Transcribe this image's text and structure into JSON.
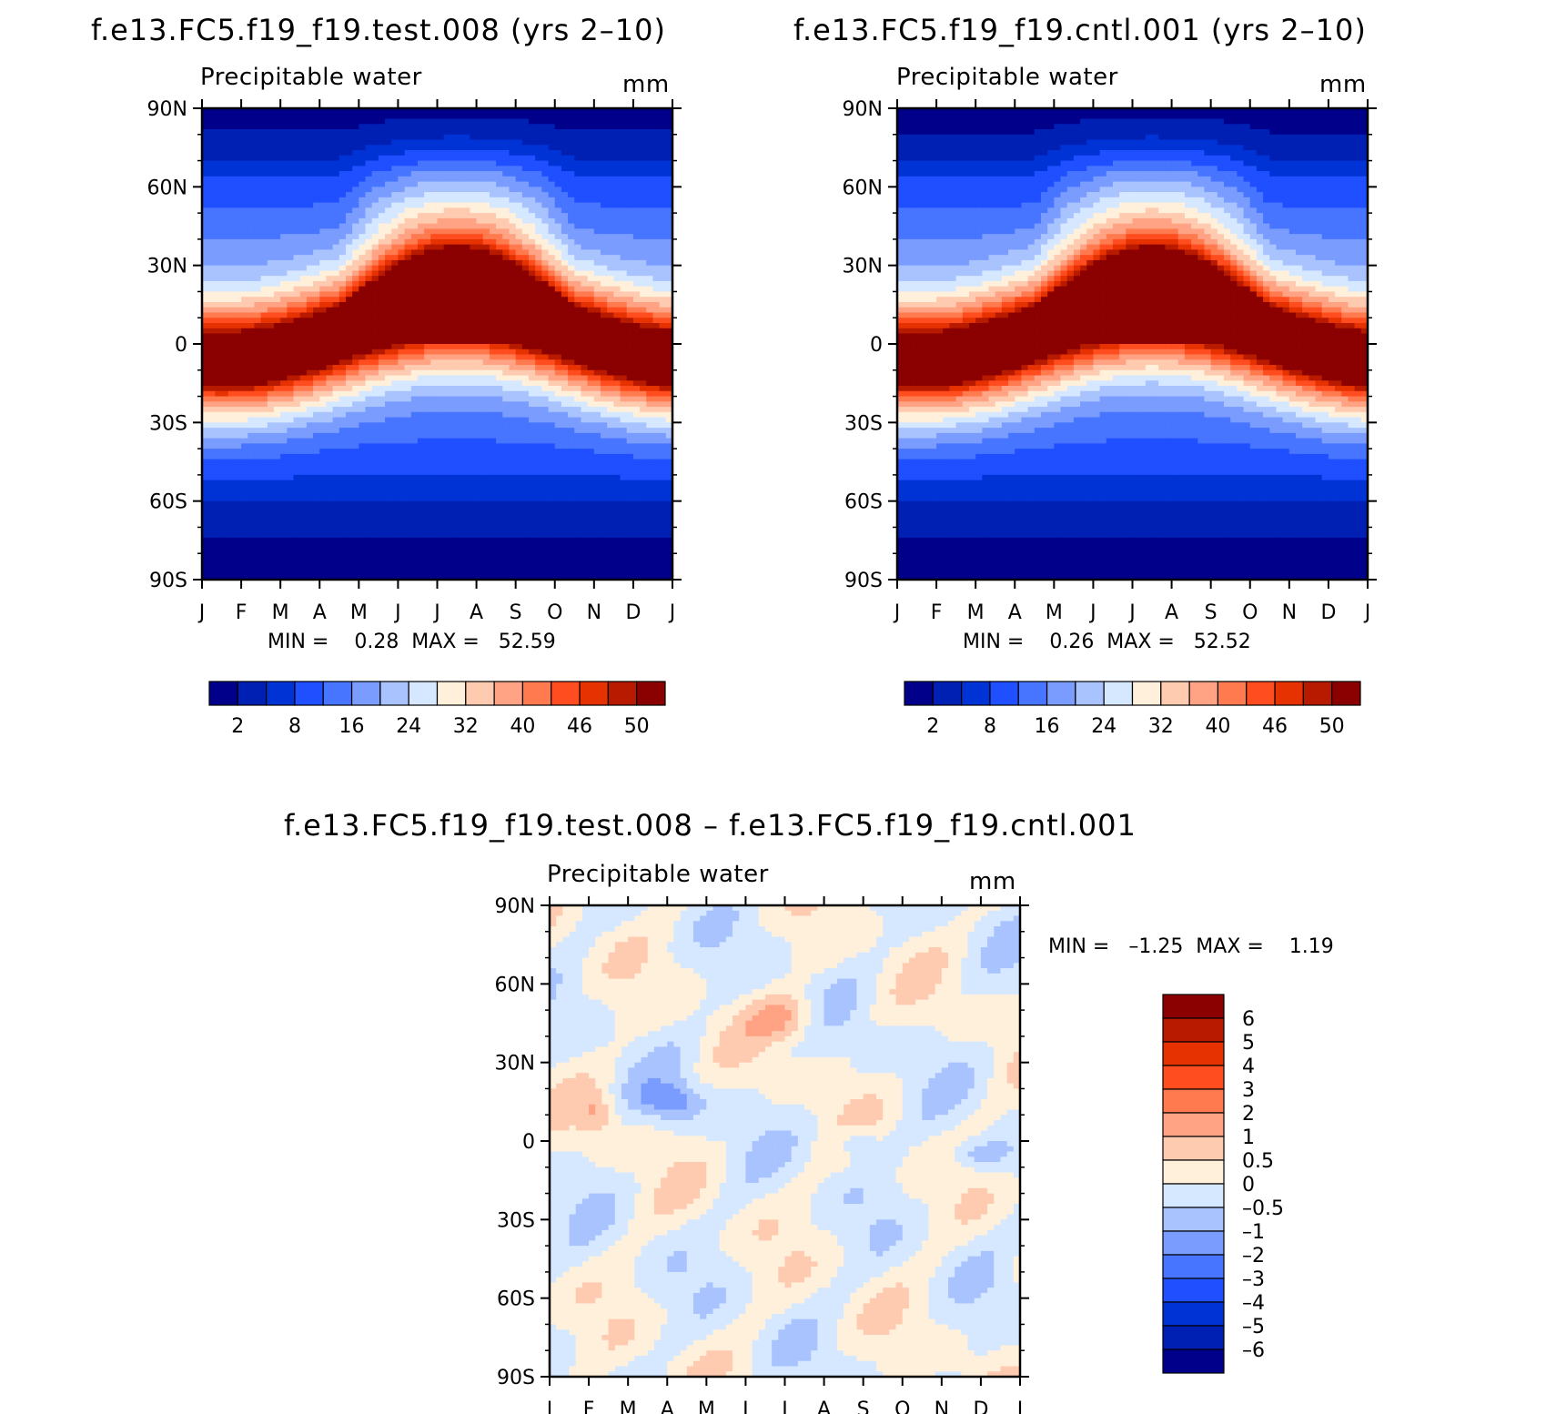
{
  "palettes": {
    "absolute": [
      "#00008b",
      "#0020b4",
      "#0033d6",
      "#1f4fff",
      "#4775ff",
      "#7a9cff",
      "#a9c3ff",
      "#d6e8ff",
      "#fff0dc",
      "#ffcbb0",
      "#ffa384",
      "#ff7a4f",
      "#ff4d1f",
      "#e63200",
      "#b81a00",
      "#8b0000"
    ],
    "difference": [
      "#00008b",
      "#0020b4",
      "#0033d6",
      "#1f4fff",
      "#4775ff",
      "#7a9cff",
      "#a9c3ff",
      "#d6e8ff",
      "#fff0dc",
      "#ffcbb0",
      "#ffa384",
      "#ff7a4f",
      "#ff4d1f",
      "#e63200",
      "#b81a00",
      "#8b0000"
    ]
  },
  "panels": {
    "test": {
      "title": "f.e13.FC5.f19_f19.test.008 (yrs 2–10)",
      "variable": "Precipitable water",
      "units": "mm",
      "stats": "MIN =    0.28  MAX =   52.59",
      "colorbar_labels": [
        "2",
        "8",
        "16",
        "24",
        "32",
        "40",
        "46",
        "50"
      ]
    },
    "cntl": {
      "title": "f.e13.FC5.f19_f19.cntl.001 (yrs 2–10)",
      "variable": "Precipitable water",
      "units": "mm",
      "stats": "MIN =    0.26  MAX =   52.52",
      "colorbar_labels": [
        "2",
        "8",
        "16",
        "24",
        "32",
        "40",
        "46",
        "50"
      ]
    },
    "diff": {
      "title": "f.e13.FC5.f19_f19.test.008 – f.e13.FC5.f19_f19.cntl.001",
      "variable": "Precipitable water",
      "units": "mm",
      "stats": "MIN =   –1.25  MAX =    1.19",
      "colorbar_labels": [
        "6",
        "5",
        "4",
        "3",
        "2",
        "1",
        "0.5",
        "0",
        "–0.5",
        "–1",
        "–2",
        "–3",
        "–4",
        "–5",
        "–6"
      ]
    }
  },
  "chart_data": [
    {
      "type": "heatmap",
      "title": "f.e13.FC5.f19_f19.test.008 (yrs 2–10)",
      "subtitle": "Precipitable water",
      "units": "mm",
      "x_ticks": [
        "J",
        "F",
        "M",
        "A",
        "M",
        "J",
        "J",
        "A",
        "S",
        "O",
        "N",
        "D",
        "J"
      ],
      "y_ticks": [
        "90N",
        "60N",
        "30N",
        "0",
        "30S",
        "60S",
        "90S"
      ],
      "xlim": [
        0,
        12
      ],
      "ylim": [
        -90,
        90
      ],
      "contour_levels": [
        2,
        5,
        8,
        12,
        16,
        20,
        24,
        28,
        32,
        36,
        40,
        43,
        46,
        48,
        50
      ],
      "min": 0.28,
      "max": 52.59
    },
    {
      "type": "heatmap",
      "title": "f.e13.FC5.f19_f19.cntl.001 (yrs 2–10)",
      "subtitle": "Precipitable water",
      "units": "mm",
      "x_ticks": [
        "J",
        "F",
        "M",
        "A",
        "M",
        "J",
        "J",
        "A",
        "S",
        "O",
        "N",
        "D",
        "J"
      ],
      "y_ticks": [
        "90N",
        "60N",
        "30N",
        "0",
        "30S",
        "60S",
        "90S"
      ],
      "xlim": [
        0,
        12
      ],
      "ylim": [
        -90,
        90
      ],
      "contour_levels": [
        2,
        5,
        8,
        12,
        16,
        20,
        24,
        28,
        32,
        36,
        40,
        43,
        46,
        48,
        50
      ],
      "min": 0.26,
      "max": 52.52
    },
    {
      "type": "heatmap",
      "title": "f.e13.FC5.f19_f19.test.008 – f.e13.FC5.f19_f19.cntl.001",
      "subtitle": "Precipitable water",
      "units": "mm",
      "x_ticks": [
        "J",
        "F",
        "M",
        "A",
        "M",
        "J",
        "J",
        "A",
        "S",
        "O",
        "N",
        "D",
        "J"
      ],
      "y_ticks": [
        "90N",
        "60N",
        "30N",
        "0",
        "30S",
        "60S",
        "90S"
      ],
      "xlim": [
        0,
        12
      ],
      "ylim": [
        -90,
        90
      ],
      "contour_levels": [
        -6,
        -5,
        -4,
        -3,
        -2,
        -1,
        -0.5,
        0,
        0.5,
        1,
        2,
        3,
        4,
        5,
        6
      ],
      "min": -1.25,
      "max": 1.19
    }
  ]
}
